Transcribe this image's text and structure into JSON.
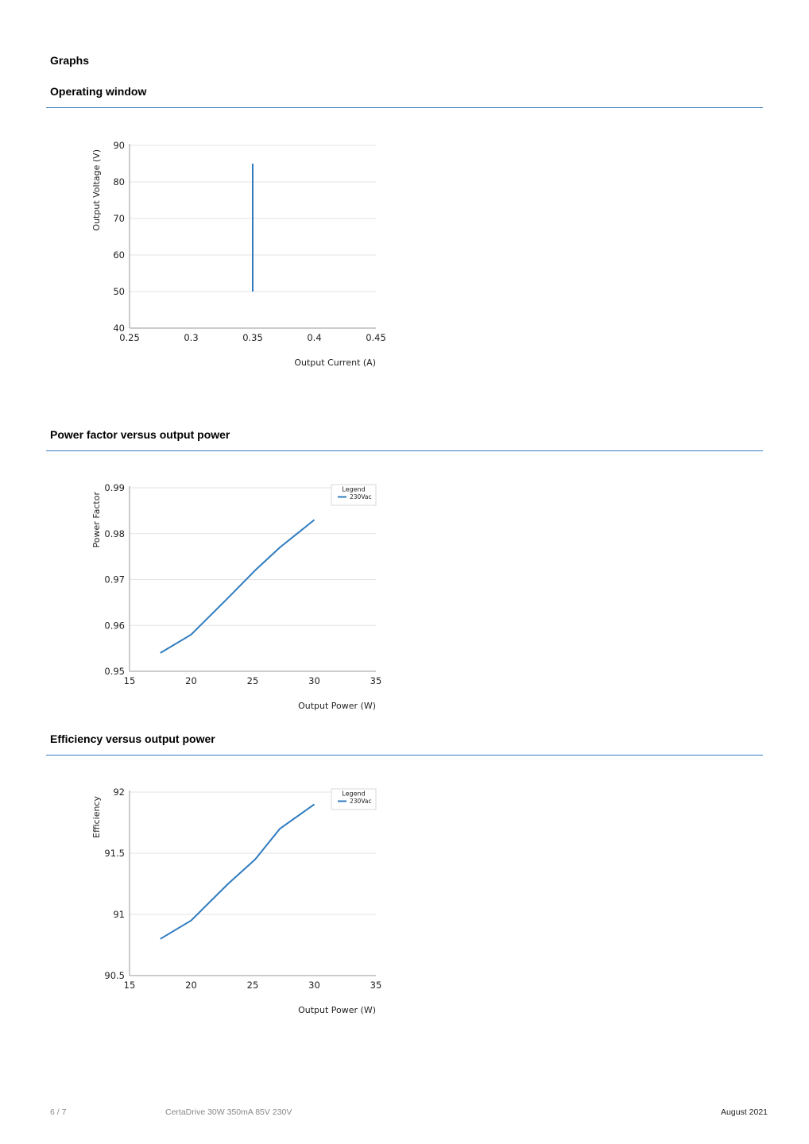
{
  "page": {
    "heading": "Graphs"
  },
  "sections": [
    {
      "title": "Operating window"
    },
    {
      "title": "Power factor versus output power"
    },
    {
      "title": "Efficiency versus output power"
    }
  ],
  "chart_data": [
    {
      "type": "line",
      "title": "Operating window",
      "xlabel": "Output Current (A)",
      "ylabel": "Output Voltage (V)",
      "xlim": [
        0.25,
        0.45
      ],
      "ylim": [
        40,
        90
      ],
      "xticks": [
        "0.25",
        "0.3",
        "0.35",
        "0.4",
        "0.45"
      ],
      "yticks": [
        "40",
        "50",
        "60",
        "70",
        "80",
        "90"
      ],
      "grid": true,
      "legend": null,
      "series": [
        {
          "color": "#2f7bbf",
          "x": [
            0.35,
            0.35
          ],
          "y": [
            50,
            85
          ]
        }
      ]
    },
    {
      "type": "line",
      "title": "Power factor versus output power",
      "xlabel": "Output Power (W)",
      "ylabel": "Power Factor",
      "xlim": [
        15,
        35
      ],
      "ylim": [
        0.95,
        0.99
      ],
      "xticks": [
        "15",
        "20",
        "25",
        "30",
        "35"
      ],
      "yticks": [
        "0.95",
        "0.96",
        "0.97",
        "0.98",
        "0.99"
      ],
      "grid": true,
      "legend": {
        "title": "Legend",
        "position": "top-right"
      },
      "series": [
        {
          "name": "230Vac",
          "color": "#2f7bbf",
          "x": [
            17.5,
            20,
            23,
            25.2,
            27.2,
            30
          ],
          "y": [
            0.954,
            0.958,
            0.966,
            0.972,
            0.977,
            0.983
          ]
        }
      ]
    },
    {
      "type": "line",
      "title": "Efficiency versus output power",
      "xlabel": "Output Power (W)",
      "ylabel": "Efficiency",
      "xlim": [
        15,
        35
      ],
      "ylim": [
        90.5,
        92
      ],
      "xticks": [
        "15",
        "20",
        "25",
        "30",
        "35"
      ],
      "yticks": [
        "90.5",
        "91",
        "91.5",
        "92"
      ],
      "grid": true,
      "legend": {
        "title": "Legend",
        "position": "top-right"
      },
      "series": [
        {
          "name": "230Vac",
          "color": "#2f7bbf",
          "x": [
            17.5,
            20,
            23,
            25.2,
            27.2,
            30
          ],
          "y": [
            90.8,
            90.95,
            91.25,
            91.45,
            91.7,
            91.9
          ]
        }
      ]
    }
  ],
  "footer": {
    "page": "6 / 7",
    "product": "CertaDrive 30W 350mA 85V 230V",
    "date": "August 2021"
  },
  "colors": {
    "rule": "#3d7fbf",
    "series": "#2f7bbf"
  }
}
